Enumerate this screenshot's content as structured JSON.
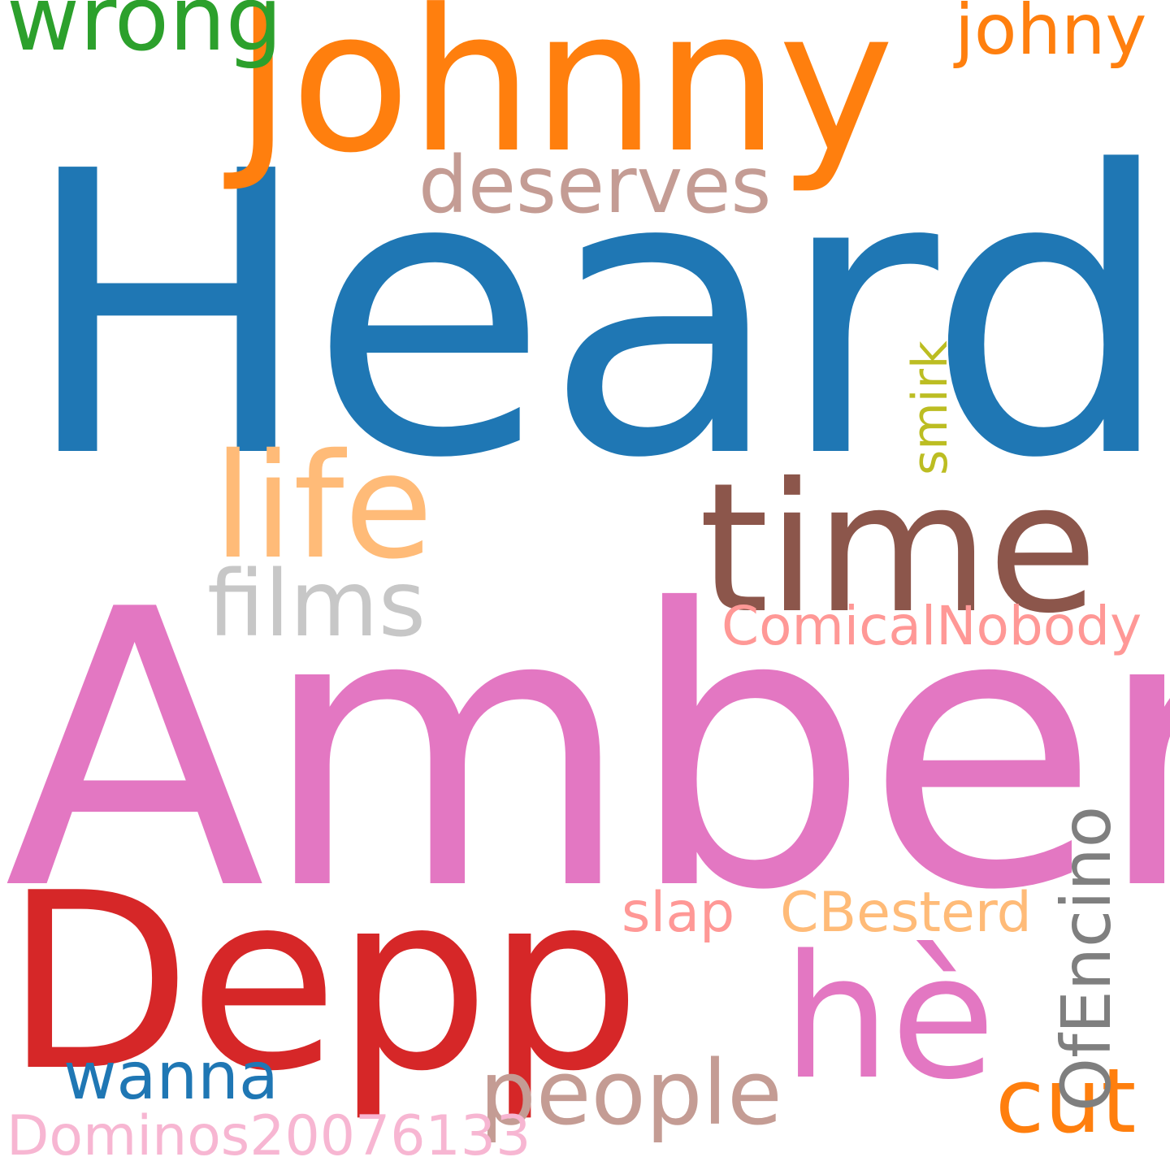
{
  "words": {
    "heard": {
      "text": "Heard",
      "color": "#1f77b4"
    },
    "amber": {
      "text": "Amber",
      "color": "#e377c2"
    },
    "johnny": {
      "text": "Johnny",
      "color": "#ff7f0e"
    },
    "depp": {
      "text": "Depp",
      "color": "#d62728"
    },
    "time": {
      "text": "time",
      "color": "#8c564b"
    },
    "life": {
      "text": "life",
      "color": "#ffbb78"
    },
    "he": {
      "text": "hè",
      "color": "#e377c2"
    },
    "wrong": {
      "text": "wrong",
      "color": "#2ca02c"
    },
    "deserves": {
      "text": "deserves",
      "color": "#c49c94"
    },
    "johny": {
      "text": "johny",
      "color": "#ff7f0e"
    },
    "films": {
      "text": "films",
      "color": "#c7c7c7"
    },
    "comical": {
      "text": "ComicalNobody",
      "color": "#ff9896"
    },
    "people": {
      "text": "people",
      "color": "#c49c94"
    },
    "cut": {
      "text": "cut",
      "color": "#ff7f0e"
    },
    "slap": {
      "text": "slap",
      "color": "#ff9896"
    },
    "cbest": {
      "text": "CBesterd",
      "color": "#ffbb78"
    },
    "wanna": {
      "text": "wanna",
      "color": "#1f77b4"
    },
    "dominos": {
      "text": "Dominos20076133",
      "color": "#f7b6d2"
    },
    "smirk": {
      "text": "smirk",
      "color": "#bcbd22"
    },
    "ofencino": {
      "text": "OfEncino",
      "color": "#7f7f7f"
    }
  }
}
